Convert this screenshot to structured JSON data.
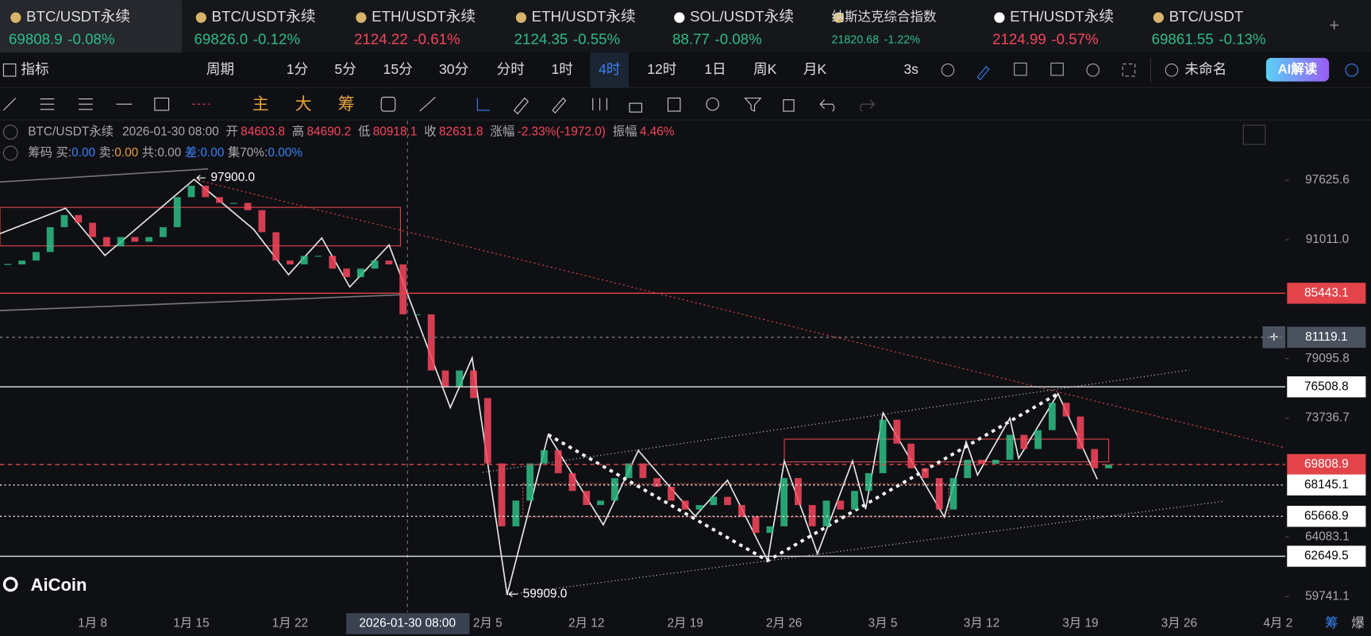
{
  "tabs": [
    {
      "name": "BTC/USDT永续",
      "price": "69808.9",
      "change": "-0.08%",
      "color": "green"
    },
    {
      "name": "BTC/USDT永续",
      "price": "69826.0",
      "change": "-0.12%",
      "color": "green"
    },
    {
      "name": "ETH/USDT永续",
      "price": "2124.22",
      "change": "-0.61%",
      "color": "red"
    },
    {
      "name": "ETH/USDT永续",
      "price": "2124.35",
      "change": "-0.55%",
      "color": "green"
    },
    {
      "name": "SOL/USDT永续",
      "price": "88.77",
      "change": "-0.08%",
      "color": "green"
    },
    {
      "name": "纳斯达克综合指数",
      "price": "21820.68",
      "change": "-1.22%",
      "color": "green"
    },
    {
      "name": "ETH/USDT永续",
      "price": "2124.99",
      "change": "-0.57%",
      "color": "red"
    },
    {
      "name": "BTC/USDT",
      "price": "69861.55",
      "change": "-0.13%",
      "color": "green"
    }
  ],
  "toolbar": {
    "indicator": "指标",
    "period": "周期",
    "intervals": [
      "1分",
      "5分",
      "15分",
      "30分",
      "分时",
      "1时",
      "4时",
      "12时",
      "1日",
      "周K",
      "月K"
    ],
    "active_interval": 6,
    "refresh": "3s",
    "layout": "未命名",
    "ai": "AI解读"
  },
  "draw_tools": [
    "主",
    "大",
    "筹"
  ],
  "info": {
    "symbol": "BTC/USDT永续",
    "time": "2026-01-30 08:00",
    "open_label": "开",
    "open": "84603.8",
    "high_label": "高",
    "high": "84690.2",
    "low_label": "低",
    "low": "80918.1",
    "close_label": "收",
    "close": "82631.8",
    "change_label": "涨幅",
    "change": "-2.33%(-1972.0)",
    "amplitude_label": "振幅",
    "amplitude": "4.46%"
  },
  "chips": {
    "label": "筹码",
    "items": [
      {
        "label": "买:",
        "value": "0.00",
        "color": "blue"
      },
      {
        "label": "卖:",
        "value": "0.00",
        "color": "orange"
      },
      {
        "label": "共:",
        "value": "0.00",
        "color": "gray"
      },
      {
        "label": "差:",
        "value": "0.00",
        "color": "blue"
      },
      {
        "label": "集70%:",
        "value": "0.00%",
        "color": "blue"
      }
    ]
  },
  "logo": "AiCoin",
  "footer": [
    "筹",
    "爆"
  ],
  "chart_data": {
    "type": "candlestick",
    "color": "#2ebd85",
    "down_color": "#f6465d",
    "categories": [
      null,
      null,
      null,
      null,
      null,
      null,
      "1月 8",
      null,
      null,
      null,
      null,
      null,
      null,
      "1月 15",
      null,
      null,
      null,
      null,
      null,
      null,
      "1月 22",
      null,
      null,
      null,
      null,
      null,
      null,
      null,
      null,
      null,
      null,
      null,
      null,
      null,
      "2月 5",
      null,
      null,
      null,
      null,
      null,
      null,
      "2月 12",
      null,
      null,
      null,
      null,
      null,
      null,
      "2月 19",
      null,
      null,
      null,
      null,
      null,
      null,
      "2月 26",
      null,
      null,
      null,
      null,
      null,
      null,
      "3月 5",
      null,
      null,
      null,
      null,
      null,
      null,
      "3月 12",
      null,
      null,
      null,
      null,
      null,
      null,
      "3月 19",
      null,
      null,
      null,
      null,
      null,
      null,
      "3月 26",
      null,
      null,
      null,
      null,
      null,
      null,
      "4月 2"
    ],
    "values": [
      88400,
      88800,
      89700,
      92370,
      93700,
      92850,
      91300,
      90300,
      91300,
      90800,
      91300,
      92370,
      95700,
      97000,
      95700,
      95050,
      95050,
      94240,
      91820,
      88800,
      88400,
      89300,
      89300,
      87960,
      87080,
      87960,
      88800,
      88400,
      83340,
      83340,
      78000,
      76480,
      78000,
      75500,
      69900,
      64900,
      66900,
      69900,
      71000,
      69100,
      67670,
      66550,
      66900,
      68700,
      69900,
      68700,
      68000,
      66900,
      66200,
      66550,
      67200,
      66550,
      65670,
      64400,
      64900,
      68700,
      66550,
      64900,
      66900,
      66200,
      67670,
      69100,
      73600,
      71550,
      69500,
      68700,
      66200,
      68700,
      70200,
      69860,
      70200,
      72300,
      71100,
      72700,
      75080,
      73880,
      71100,
      69500,
      69808.9,
      null,
      null,
      null,
      null,
      null,
      null,
      null,
      null,
      null,
      null,
      null,
      null
    ],
    "ylim": [
      58642,
      104720
    ],
    "log_scale": true,
    "yticks": [
      97625.6,
      {
        "value": 91011.0,
        "label": "91011.0"
      },
      79095.8,
      73736.7,
      64083.1,
      59741.1
    ],
    "levels": [
      85443.1,
      81119.1,
      76508.8,
      69808.9,
      68145.1,
      65668.9,
      62649.5
    ],
    "high_marker": {
      "value": 97900,
      "label": "97900.0"
    },
    "low_marker": {
      "value": 59909,
      "label": "59909.0"
    },
    "crosshair": {
      "label": "2026-01-30 08:00"
    }
  }
}
